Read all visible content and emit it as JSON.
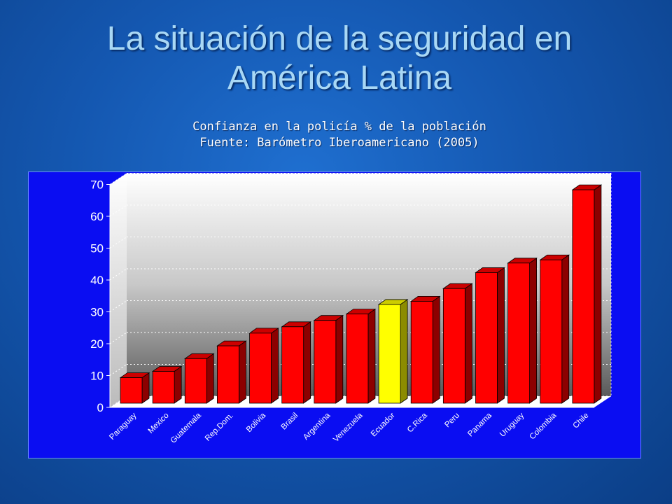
{
  "title": {
    "line1": "La situación de la seguridad en",
    "line2": "América Latina"
  },
  "subtitle": {
    "line1": "Confianza en la policía % de la población",
    "line2": "Fuente: Barómetro Iberoamericano (2005)"
  },
  "colors": {
    "bar": "#ff0000",
    "highlight_bar": "#ffff00",
    "chart_background": "#0a0df2"
  },
  "chart_data": {
    "type": "bar",
    "title": "",
    "xlabel": "",
    "ylabel": "",
    "categories": [
      "Paraguay",
      "Mexico",
      "Guatemala",
      "Rep.Dom.",
      "Bolivia",
      "Brasil",
      "Argentina",
      "Venezuela",
      "Ecuador",
      "C.Rica",
      "Peru",
      "Panama",
      "Uruguay",
      "Colombia",
      "Chile"
    ],
    "values": [
      8,
      10,
      14,
      18,
      22,
      24,
      26,
      28,
      31,
      32,
      36,
      41,
      44,
      45,
      67
    ],
    "highlight": "Ecuador",
    "ylim": [
      0,
      70
    ],
    "yticks": [
      0,
      10,
      20,
      30,
      40,
      50,
      60,
      70
    ],
    "grid": true,
    "three_d": true
  }
}
